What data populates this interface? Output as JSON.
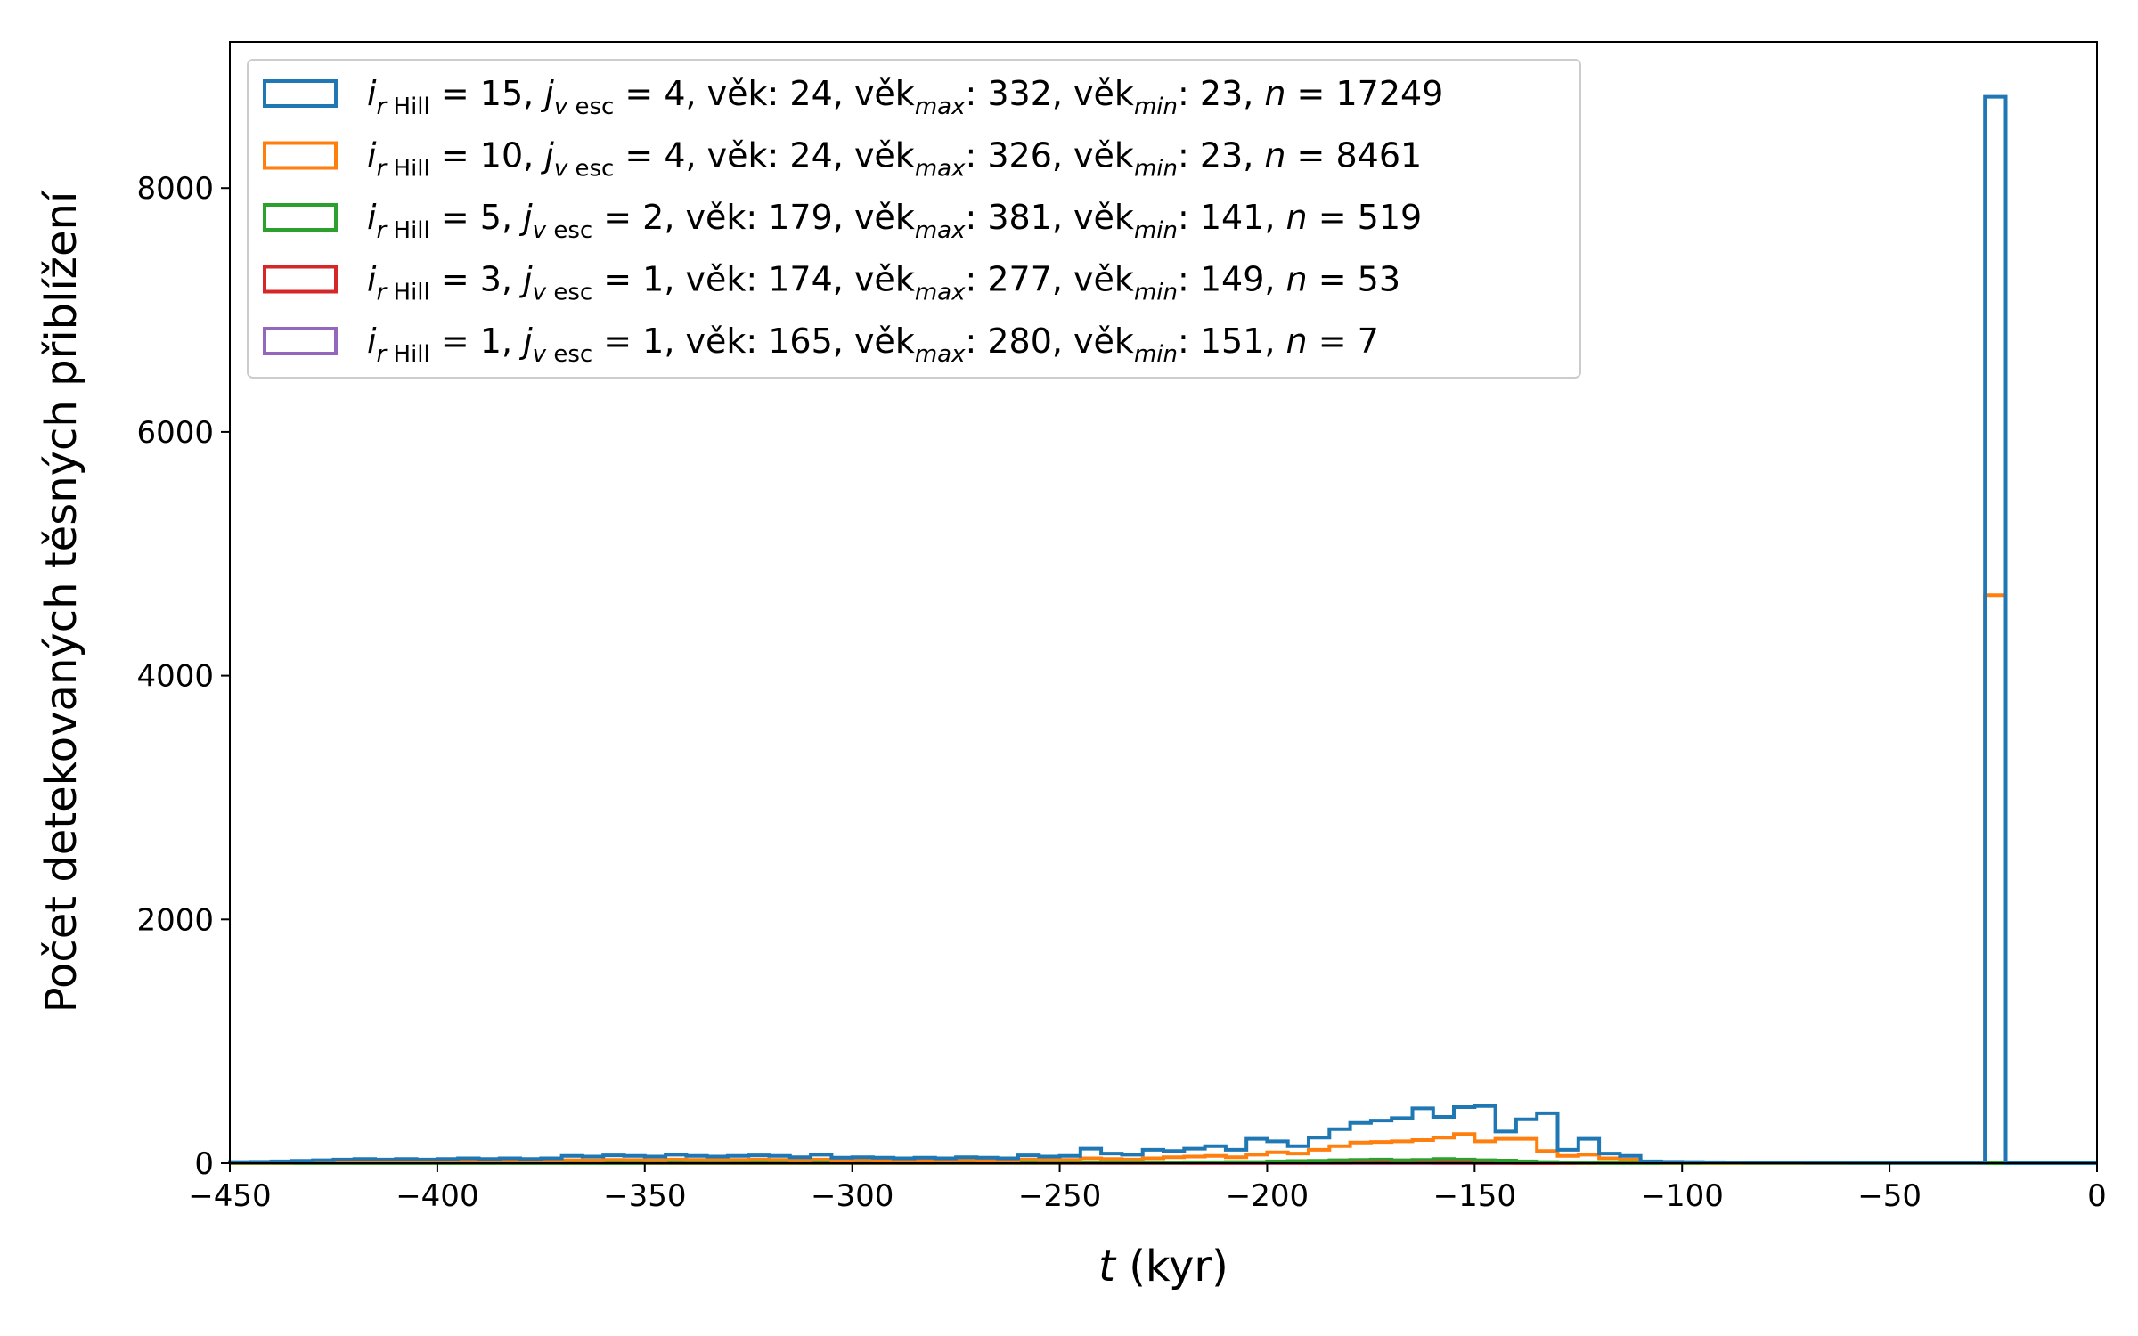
{
  "chart_data": {
    "type": "histogram-step",
    "xlabel_var": "t",
    "xlabel_unit": " (kyr)",
    "ylabel": "Počet detekovaných těsných přiblížení",
    "xlim": [
      -450,
      0
    ],
    "ylim": [
      0,
      9200
    ],
    "xticks": [
      -450,
      -400,
      -350,
      -300,
      -250,
      -200,
      -150,
      -100,
      -50,
      0
    ],
    "xtick_labels": [
      "−450",
      "−400",
      "−350",
      "−300",
      "−250",
      "−200",
      "−150",
      "−100",
      "−50",
      "0"
    ],
    "yticks": [
      0,
      2000,
      4000,
      6000,
      8000
    ],
    "ytick_labels": [
      "0",
      "2000",
      "4000",
      "6000",
      "8000"
    ],
    "bin_width": 5,
    "legend_position": "upper-left",
    "grid": false,
    "series": [
      {
        "color": "#1f77b4",
        "legend": {
          "i": "15",
          "j": "4",
          "age": " 24",
          "age_max": "332",
          "age_min": "23",
          "n": "17249"
        },
        "bins": [
          [
            -450,
            -445,
            10
          ],
          [
            -445,
            -440,
            12
          ],
          [
            -440,
            -435,
            15
          ],
          [
            -435,
            -430,
            20
          ],
          [
            -430,
            -425,
            25
          ],
          [
            -425,
            -420,
            30
          ],
          [
            -420,
            -415,
            35
          ],
          [
            -415,
            -410,
            30
          ],
          [
            -410,
            -405,
            35
          ],
          [
            -405,
            -400,
            30
          ],
          [
            -400,
            -395,
            35
          ],
          [
            -395,
            -390,
            40
          ],
          [
            -390,
            -385,
            35
          ],
          [
            -385,
            -380,
            40
          ],
          [
            -380,
            -375,
            35
          ],
          [
            -375,
            -370,
            40
          ],
          [
            -370,
            -365,
            60
          ],
          [
            -365,
            -360,
            55
          ],
          [
            -360,
            -355,
            65
          ],
          [
            -355,
            -350,
            60
          ],
          [
            -350,
            -345,
            55
          ],
          [
            -345,
            -340,
            70
          ],
          [
            -340,
            -335,
            60
          ],
          [
            -335,
            -330,
            55
          ],
          [
            -330,
            -325,
            60
          ],
          [
            -325,
            -320,
            65
          ],
          [
            -320,
            -315,
            60
          ],
          [
            -315,
            -310,
            50
          ],
          [
            -310,
            -305,
            70
          ],
          [
            -305,
            -300,
            45
          ],
          [
            -300,
            -295,
            50
          ],
          [
            -295,
            -290,
            45
          ],
          [
            -290,
            -285,
            40
          ],
          [
            -285,
            -280,
            45
          ],
          [
            -280,
            -275,
            40
          ],
          [
            -275,
            -270,
            50
          ],
          [
            -270,
            -265,
            45
          ],
          [
            -265,
            -260,
            40
          ],
          [
            -260,
            -255,
            65
          ],
          [
            -255,
            -250,
            55
          ],
          [
            -250,
            -245,
            60
          ],
          [
            -245,
            -240,
            120
          ],
          [
            -240,
            -235,
            80
          ],
          [
            -235,
            -230,
            70
          ],
          [
            -230,
            -225,
            110
          ],
          [
            -225,
            -220,
            100
          ],
          [
            -220,
            -215,
            120
          ],
          [
            -215,
            -210,
            140
          ],
          [
            -210,
            -205,
            110
          ],
          [
            -205,
            -200,
            200
          ],
          [
            -200,
            -195,
            180
          ],
          [
            -195,
            -190,
            140
          ],
          [
            -190,
            -185,
            210
          ],
          [
            -185,
            -180,
            280
          ],
          [
            -180,
            -175,
            330
          ],
          [
            -175,
            -170,
            350
          ],
          [
            -170,
            -165,
            370
          ],
          [
            -165,
            -160,
            450
          ],
          [
            -160,
            -155,
            380
          ],
          [
            -155,
            -150,
            460
          ],
          [
            -150,
            -145,
            470
          ],
          [
            -145,
            -140,
            260
          ],
          [
            -140,
            -135,
            360
          ],
          [
            -135,
            -130,
            410
          ],
          [
            -130,
            -125,
            110
          ],
          [
            -125,
            -120,
            200
          ],
          [
            -120,
            -115,
            80
          ],
          [
            -115,
            -110,
            60
          ],
          [
            -110,
            -105,
            15
          ],
          [
            -105,
            -100,
            12
          ],
          [
            -100,
            -95,
            10
          ],
          [
            -95,
            -90,
            8
          ],
          [
            -90,
            -85,
            7
          ],
          [
            -85,
            -80,
            6
          ],
          [
            -80,
            -75,
            5
          ],
          [
            -75,
            -70,
            5
          ],
          [
            -70,
            -65,
            4
          ],
          [
            -65,
            -60,
            4
          ],
          [
            -60,
            -55,
            3
          ],
          [
            -55,
            -50,
            3
          ],
          [
            -50,
            -45,
            2
          ],
          [
            -45,
            -40,
            2
          ],
          [
            -40,
            -35,
            2
          ],
          [
            -35,
            -30,
            2
          ],
          [
            -30,
            -27,
            2
          ],
          [
            -27,
            -22,
            8750
          ],
          [
            -22,
            0,
            0
          ]
        ]
      },
      {
        "color": "#ff7f0e",
        "legend": {
          "i": "10",
          "j": "4",
          "age": " 24",
          "age_max": "326",
          "age_min": "23",
          "n": "8461"
        },
        "bins": [
          [
            -450,
            -445,
            5
          ],
          [
            -445,
            -440,
            6
          ],
          [
            -440,
            -435,
            6
          ],
          [
            -435,
            -430,
            8
          ],
          [
            -430,
            -425,
            8
          ],
          [
            -425,
            -420,
            10
          ],
          [
            -420,
            -415,
            10
          ],
          [
            -415,
            -410,
            10
          ],
          [
            -410,
            -405,
            12
          ],
          [
            -405,
            -400,
            12
          ],
          [
            -400,
            -395,
            14
          ],
          [
            -395,
            -390,
            14
          ],
          [
            -390,
            -385,
            16
          ],
          [
            -385,
            -380,
            18
          ],
          [
            -380,
            -375,
            18
          ],
          [
            -375,
            -370,
            20
          ],
          [
            -370,
            -365,
            25
          ],
          [
            -365,
            -360,
            24
          ],
          [
            -360,
            -355,
            28
          ],
          [
            -355,
            -350,
            26
          ],
          [
            -350,
            -345,
            25
          ],
          [
            -345,
            -340,
            30
          ],
          [
            -340,
            -335,
            28
          ],
          [
            -335,
            -330,
            26
          ],
          [
            -330,
            -325,
            28
          ],
          [
            -325,
            -320,
            30
          ],
          [
            -320,
            -315,
            28
          ],
          [
            -315,
            -310,
            24
          ],
          [
            -310,
            -305,
            30
          ],
          [
            -305,
            -300,
            22
          ],
          [
            -300,
            -295,
            24
          ],
          [
            -295,
            -290,
            22
          ],
          [
            -290,
            -285,
            20
          ],
          [
            -285,
            -280,
            22
          ],
          [
            -280,
            -275,
            20
          ],
          [
            -275,
            -270,
            24
          ],
          [
            -270,
            -265,
            22
          ],
          [
            -265,
            -260,
            20
          ],
          [
            -260,
            -255,
            30
          ],
          [
            -255,
            -250,
            26
          ],
          [
            -250,
            -245,
            28
          ],
          [
            -245,
            -240,
            40
          ],
          [
            -240,
            -235,
            35
          ],
          [
            -235,
            -230,
            30
          ],
          [
            -230,
            -225,
            40
          ],
          [
            -225,
            -220,
            50
          ],
          [
            -220,
            -215,
            55
          ],
          [
            -215,
            -210,
            60
          ],
          [
            -210,
            -205,
            50
          ],
          [
            -205,
            -200,
            70
          ],
          [
            -200,
            -195,
            90
          ],
          [
            -195,
            -190,
            80
          ],
          [
            -190,
            -185,
            110
          ],
          [
            -185,
            -180,
            140
          ],
          [
            -180,
            -175,
            170
          ],
          [
            -175,
            -170,
            175
          ],
          [
            -170,
            -165,
            180
          ],
          [
            -165,
            -160,
            190
          ],
          [
            -160,
            -155,
            210
          ],
          [
            -155,
            -150,
            240
          ],
          [
            -150,
            -145,
            180
          ],
          [
            -145,
            -140,
            200
          ],
          [
            -140,
            -135,
            200
          ],
          [
            -135,
            -130,
            100
          ],
          [
            -130,
            -125,
            60
          ],
          [
            -125,
            -120,
            70
          ],
          [
            -120,
            -115,
            40
          ],
          [
            -115,
            -110,
            30
          ],
          [
            -110,
            -105,
            8
          ],
          [
            -105,
            -100,
            6
          ],
          [
            -100,
            -95,
            5
          ],
          [
            -95,
            -90,
            4
          ],
          [
            -90,
            -85,
            4
          ],
          [
            -85,
            -80,
            3
          ],
          [
            -80,
            -75,
            3
          ],
          [
            -75,
            -70,
            3
          ],
          [
            -70,
            -65,
            2
          ],
          [
            -65,
            -60,
            2
          ],
          [
            -60,
            -55,
            2
          ],
          [
            -55,
            -50,
            2
          ],
          [
            -50,
            -45,
            1
          ],
          [
            -45,
            -40,
            1
          ],
          [
            -40,
            -35,
            1
          ],
          [
            -35,
            -30,
            1
          ],
          [
            -30,
            -27,
            1
          ],
          [
            -27,
            -22,
            4660
          ],
          [
            -22,
            0,
            0
          ]
        ]
      },
      {
        "color": "#2ca02c",
        "legend": {
          "i": " 5",
          "j": "2",
          "age": "179",
          "age_max": "381",
          "age_min": "141",
          "n": "519"
        },
        "bins": [
          [
            -450,
            -350,
            1
          ],
          [
            -350,
            -300,
            3
          ],
          [
            -300,
            -250,
            4
          ],
          [
            -250,
            -220,
            5
          ],
          [
            -220,
            -210,
            8
          ],
          [
            -210,
            -200,
            10
          ],
          [
            -200,
            -195,
            15
          ],
          [
            -195,
            -190,
            18
          ],
          [
            -190,
            -185,
            20
          ],
          [
            -185,
            -180,
            25
          ],
          [
            -180,
            -175,
            28
          ],
          [
            -175,
            -170,
            30
          ],
          [
            -170,
            -165,
            25
          ],
          [
            -165,
            -160,
            28
          ],
          [
            -160,
            -155,
            35
          ],
          [
            -155,
            -150,
            30
          ],
          [
            -150,
            -145,
            25
          ],
          [
            -145,
            -140,
            22
          ],
          [
            -140,
            -135,
            15
          ],
          [
            -135,
            -130,
            10
          ],
          [
            -130,
            -125,
            6
          ],
          [
            -125,
            -120,
            4
          ],
          [
            -120,
            -100,
            1
          ],
          [
            -100,
            0,
            0
          ]
        ]
      },
      {
        "color": "#d62728",
        "legend": {
          "i": " 3",
          "j": "1",
          "age": "174",
          "age_max": "277",
          "age_min": "149",
          "n": "53"
        },
        "bins": [
          [
            -450,
            -280,
            0
          ],
          [
            -280,
            -250,
            1
          ],
          [
            -250,
            -200,
            2
          ],
          [
            -200,
            -180,
            3
          ],
          [
            -180,
            -160,
            4
          ],
          [
            -160,
            -150,
            3
          ],
          [
            -150,
            -140,
            2
          ],
          [
            -140,
            0,
            0
          ]
        ]
      },
      {
        "color": "#9467bd",
        "legend": {
          "i": " 1",
          "j": "1",
          "age": "165",
          "age_max": "280",
          "age_min": "151",
          "n": "7"
        },
        "bins": [
          [
            -450,
            -280,
            0
          ],
          [
            -280,
            -200,
            1
          ],
          [
            -200,
            -150,
            1
          ],
          [
            -150,
            0,
            0
          ]
        ]
      }
    ]
  }
}
